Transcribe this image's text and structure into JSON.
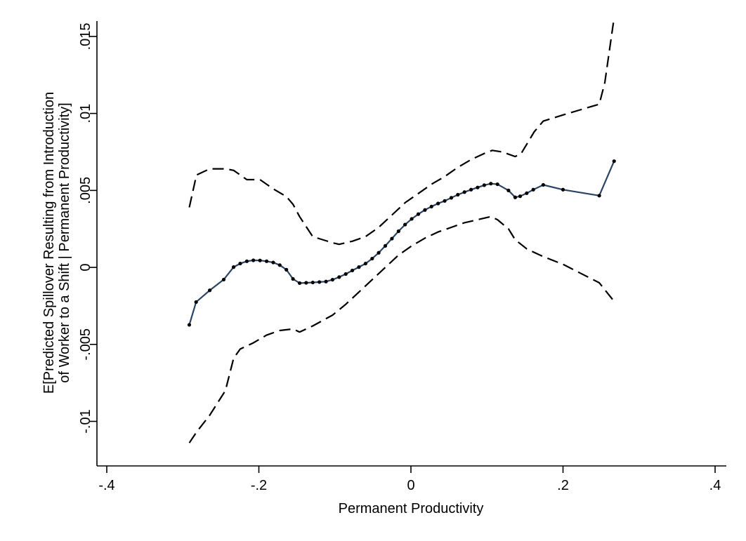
{
  "chart_data": {
    "type": "line",
    "title": "",
    "xlabel": "Permanent Productivity",
    "ylabel_lines": [
      "E[Predicted Spillover Resulting from Introduction",
      "of Worker to a Shift | Permanent Productivity]"
    ],
    "xlim": [
      -0.4,
      0.4
    ],
    "ylim": [
      -0.0118,
      0.016
    ],
    "xticks": [
      -0.4,
      -0.2,
      0,
      0.2,
      0.4
    ],
    "xtick_labels": [
      "-.4",
      "-.2",
      "0",
      ".2",
      ".4"
    ],
    "yticks": [
      -0.01,
      -0.005,
      0,
      0.005,
      0.01,
      0.015
    ],
    "ytick_labels": [
      "-.01",
      "-.005",
      "0",
      ".005",
      ".01",
      ".015"
    ],
    "grid": false,
    "legend": "none",
    "colors": {
      "estimate": "#2b4466",
      "band": "#000000"
    },
    "series": [
      {
        "role": "estimate",
        "style": "solid-with-markers",
        "x": [
          -0.2915,
          -0.2825,
          -0.2646,
          -0.2462,
          -0.2332,
          -0.2245,
          -0.2158,
          -0.2072,
          -0.1985,
          -0.1898,
          -0.1811,
          -0.1725,
          -0.1638,
          -0.1551,
          -0.1464,
          -0.1378,
          -0.1291,
          -0.1204,
          -0.1117,
          -0.1031,
          -0.0944,
          -0.0857,
          -0.0771,
          -0.0684,
          -0.0597,
          -0.051,
          -0.0424,
          -0.0337,
          -0.025,
          -0.0163,
          -0.0077,
          0.001,
          0.0097,
          0.0184,
          0.027,
          0.0357,
          0.0444,
          0.0531,
          0.0617,
          0.0704,
          0.0791,
          0.0877,
          0.0964,
          0.1051,
          0.1138,
          0.1283,
          0.1371,
          0.1436,
          0.1523,
          0.1609,
          0.174,
          0.2,
          0.2477,
          0.2672
        ],
        "y": [
          -0.00373,
          -0.00225,
          -0.00149,
          -0.00079,
          2e-05,
          0.00025,
          0.0004,
          0.00046,
          0.00045,
          0.0004,
          0.00032,
          0.00015,
          -0.00015,
          -0.00075,
          -0.00102,
          -0.001,
          -0.00098,
          -0.00095,
          -0.00092,
          -0.0008,
          -0.00063,
          -0.00043,
          -0.0002,
          2e-05,
          0.00025,
          0.00057,
          0.00095,
          0.0014,
          0.00187,
          0.00235,
          0.00278,
          0.00315,
          0.00346,
          0.00373,
          0.00395,
          0.00415,
          0.00432,
          0.00452,
          0.00472,
          0.00489,
          0.00505,
          0.00519,
          0.00534,
          0.00544,
          0.0054,
          0.005,
          0.00455,
          0.00462,
          0.00482,
          0.00505,
          0.00536,
          0.00505,
          0.00466,
          0.0069
        ]
      },
      {
        "role": "upper-bound",
        "style": "dashed",
        "x": [
          -0.2915,
          -0.282,
          -0.2646,
          -0.244,
          -0.2332,
          -0.2158,
          -0.1985,
          -0.1811,
          -0.1638,
          -0.1551,
          -0.1464,
          -0.1291,
          -0.1031,
          -0.0944,
          -0.0771,
          -0.0597,
          -0.0424,
          -0.025,
          -0.0077,
          0.0097,
          0.027,
          0.0444,
          0.0617,
          0.0791,
          0.0964,
          0.107,
          0.12,
          0.1371,
          0.145,
          0.162,
          0.174,
          0.2,
          0.2477,
          0.255,
          0.2672
        ],
        "y": [
          0.0039,
          0.006,
          0.0064,
          0.0064,
          0.0063,
          0.0057,
          0.0057,
          0.0051,
          0.0046,
          0.0041,
          0.0033,
          0.002,
          0.0016,
          0.0015,
          0.0017,
          0.002,
          0.0026,
          0.0034,
          0.0042,
          0.0048,
          0.0054,
          0.0059,
          0.0065,
          0.007,
          0.0074,
          0.0076,
          0.0075,
          0.0072,
          0.0074,
          0.0088,
          0.0095,
          0.0099,
          0.0106,
          0.012,
          0.0162
        ]
      },
      {
        "role": "lower-bound",
        "style": "dashed",
        "x": [
          -0.2915,
          -0.282,
          -0.2646,
          -0.244,
          -0.2332,
          -0.2245,
          -0.2072,
          -0.1898,
          -0.1725,
          -0.1551,
          -0.1464,
          -0.1291,
          -0.1031,
          -0.0857,
          -0.0684,
          -0.051,
          -0.0337,
          -0.0163,
          0.001,
          0.0184,
          0.0357,
          0.0531,
          0.0704,
          0.0877,
          0.1051,
          0.1138,
          0.1283,
          0.1371,
          0.1523,
          0.1609,
          0.174,
          0.2,
          0.2477,
          0.2672
        ],
        "y": [
          -0.0114,
          -0.0107,
          -0.0096,
          -0.008,
          -0.0059,
          -0.0053,
          -0.0049,
          -0.0044,
          -0.0041,
          -0.004,
          -0.0042,
          -0.0038,
          -0.0031,
          -0.0024,
          -0.0016,
          -0.0008,
          0.0,
          0.0008,
          0.0014,
          0.0019,
          0.0023,
          0.0026,
          0.0029,
          0.0031,
          0.0033,
          0.0031,
          0.0025,
          0.0018,
          0.0012,
          0.001,
          0.0007,
          0.0002,
          -0.001,
          -0.0022
        ]
      }
    ]
  }
}
